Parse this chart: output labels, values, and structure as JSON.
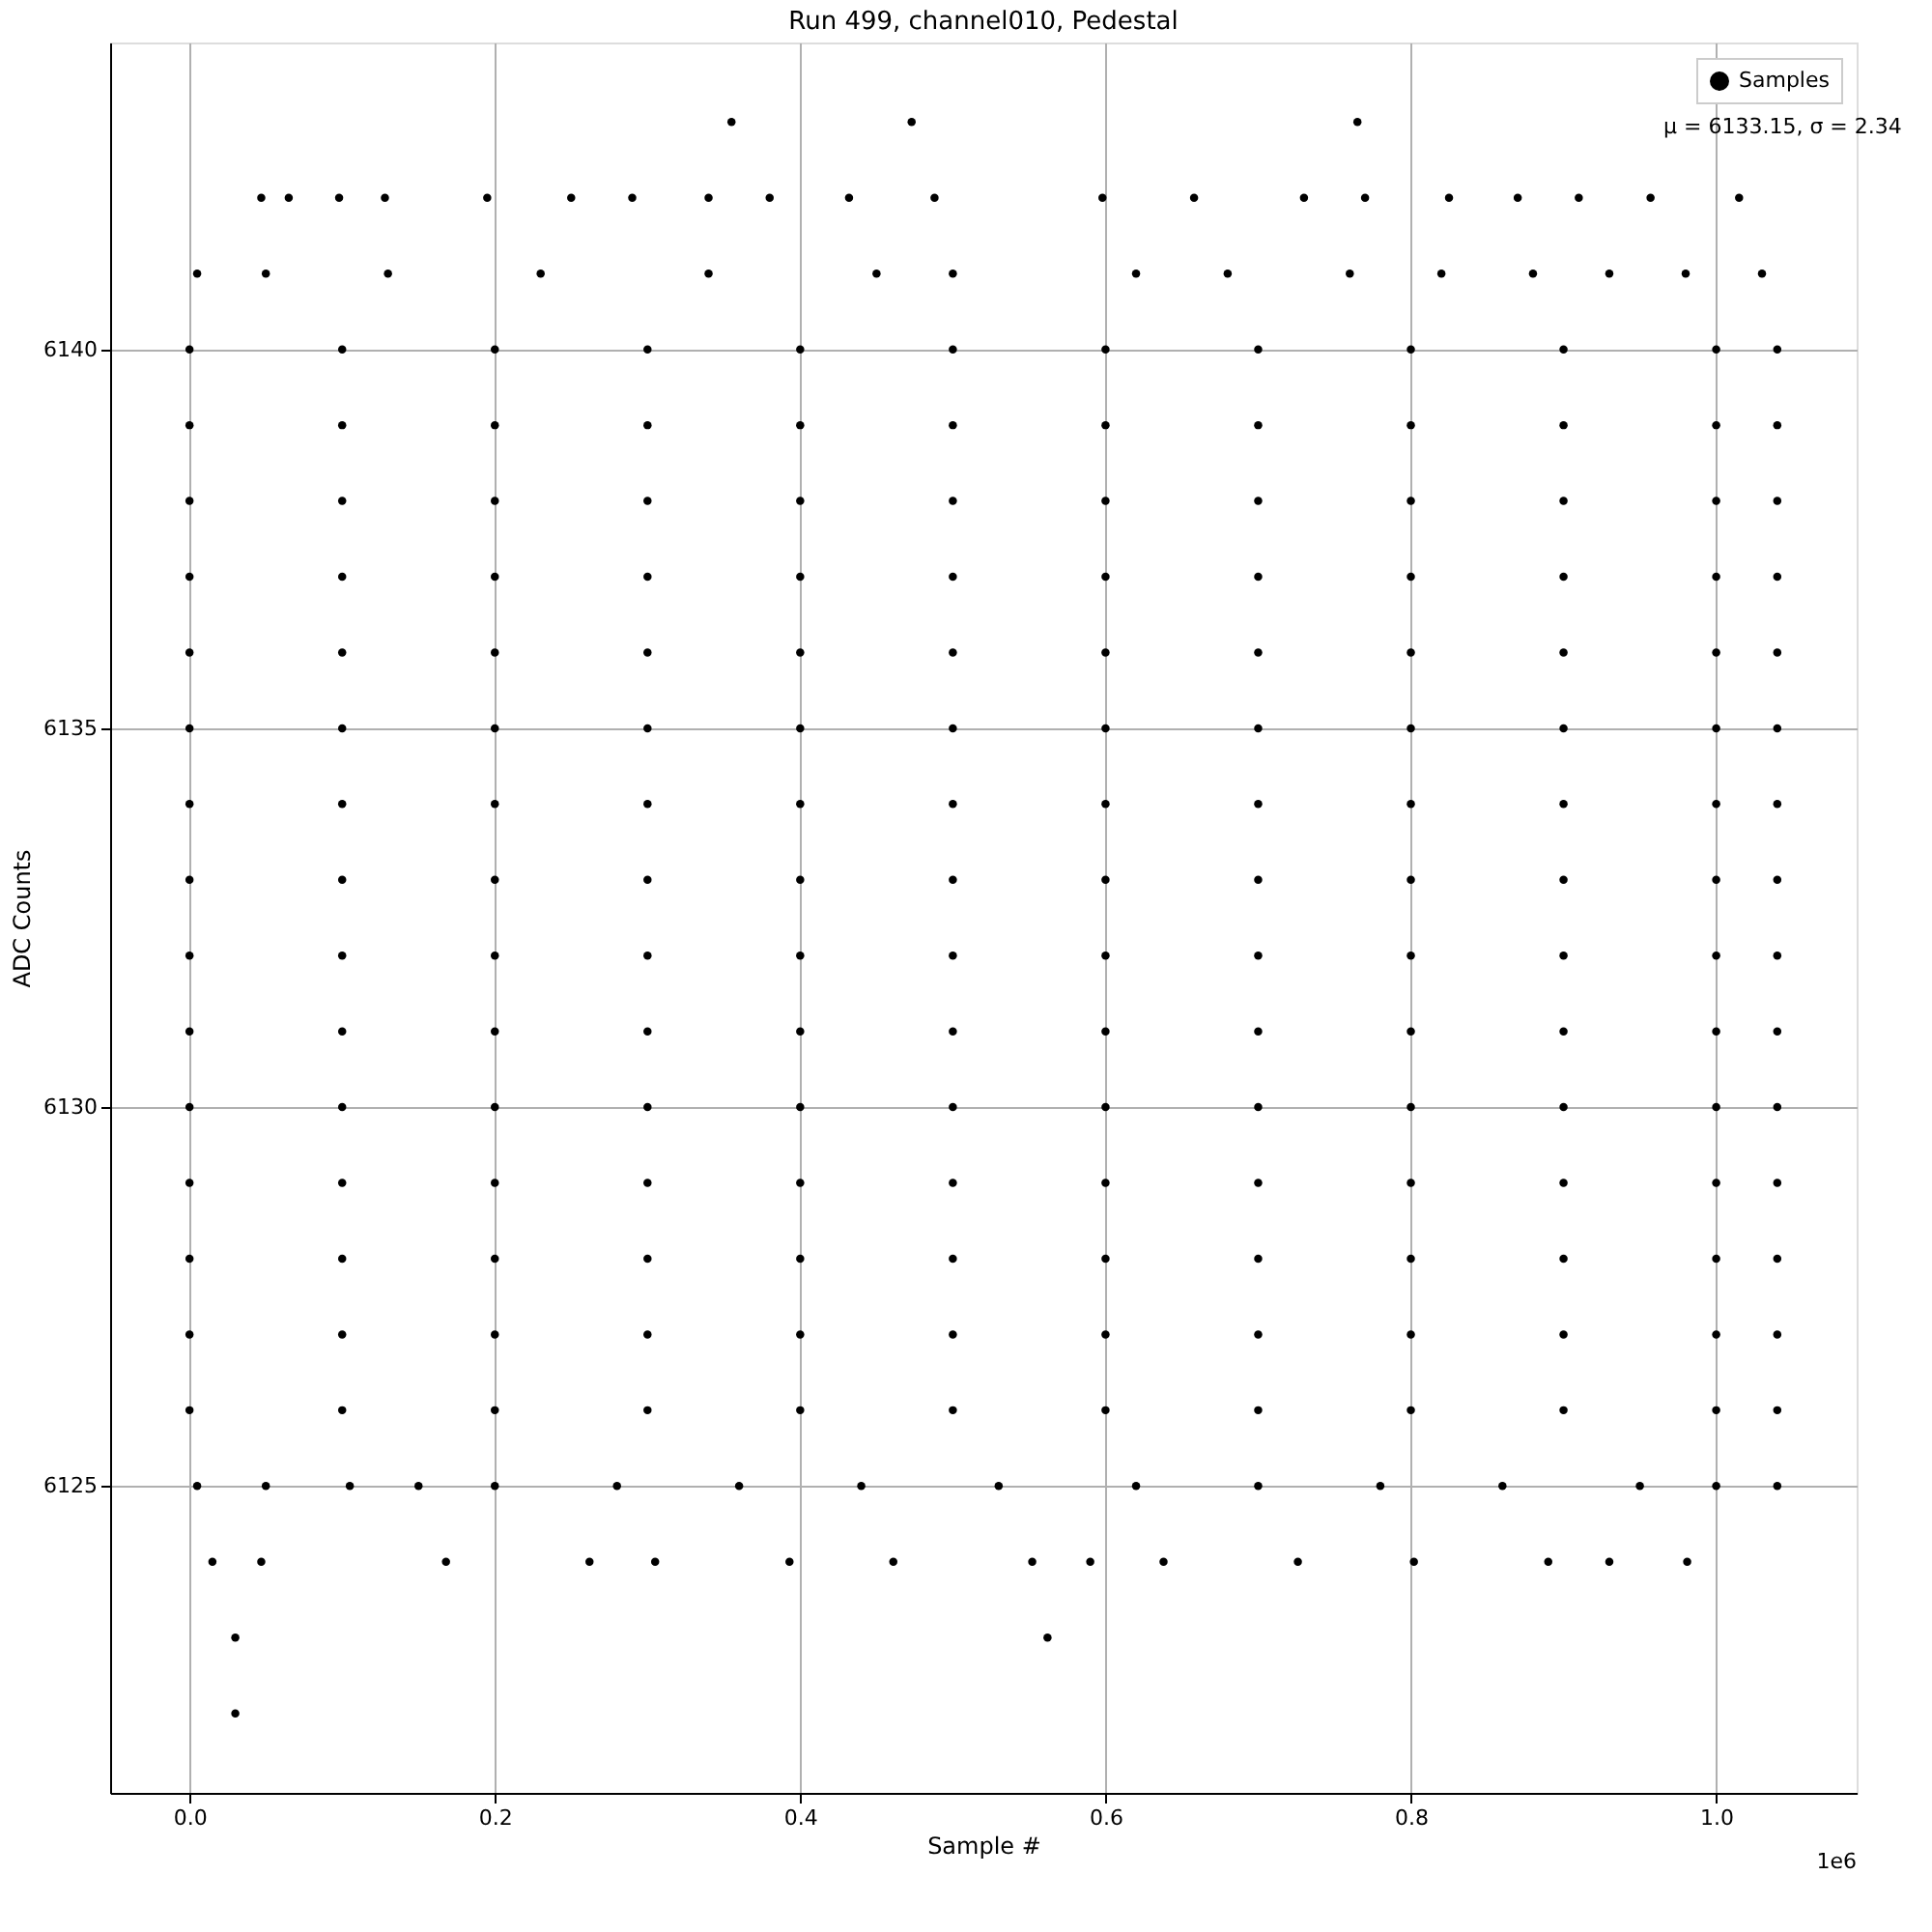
{
  "chart_data": {
    "type": "scatter",
    "title": "Run 499, channel010, Pedestal",
    "xlabel": "Sample #",
    "ylabel": "ADC Counts",
    "xlim": [
      -0.052,
      1.092
    ],
    "ylim": [
      6120.95,
      6144.05
    ],
    "xticks": [
      {
        "value": 0,
        "label": "0.0"
      },
      0.2,
      0.4,
      0.6,
      0.8,
      {
        "value": 1,
        "label": "1.0"
      }
    ],
    "yticks": [
      6125,
      6130,
      6135,
      6140
    ],
    "grid": true,
    "legend": "top right",
    "marker": "circle",
    "annotations": [
      "1e6",
      "μ = 6133.15, σ = 2.34"
    ],
    "series": [
      {
        "name": "Samples",
        "color": "#000000",
        "x": [
          0,
          0.1,
          0.2,
          0.3,
          0.4,
          0.5,
          0.6,
          0.7,
          0.8,
          0.9,
          1.0,
          1.04,
          0,
          0.1,
          0.2,
          0.3,
          0.4,
          0.5,
          0.6,
          0.7,
          0.8,
          0.9,
          1.0,
          1.04,
          0,
          0.1,
          0.2,
          0.3,
          0.4,
          0.5,
          0.6,
          0.7,
          0.8,
          0.9,
          1.0,
          1.04,
          0,
          0.1,
          0.2,
          0.3,
          0.4,
          0.5,
          0.6,
          0.7,
          0.8,
          0.9,
          1.0,
          1.04,
          0,
          0.1,
          0.2,
          0.3,
          0.4,
          0.5,
          0.6,
          0.7,
          0.8,
          0.9,
          1.0,
          1.04,
          0,
          0.1,
          0.2,
          0.3,
          0.4,
          0.5,
          0.6,
          0.7,
          0.8,
          0.9,
          1.0,
          1.04,
          0,
          0.1,
          0.2,
          0.3,
          0.4,
          0.5,
          0.6,
          0.7,
          0.8,
          0.9,
          1.0,
          1.04,
          0,
          0.1,
          0.2,
          0.3,
          0.4,
          0.5,
          0.6,
          0.7,
          0.8,
          0.9,
          1.0,
          1.04,
          0,
          0.1,
          0.2,
          0.3,
          0.4,
          0.5,
          0.6,
          0.7,
          0.8,
          0.9,
          1.0,
          1.04,
          0,
          0.1,
          0.2,
          0.3,
          0.4,
          0.5,
          0.6,
          0.7,
          0.8,
          0.9,
          1.0,
          1.04,
          0,
          0.1,
          0.2,
          0.3,
          0.4,
          0.5,
          0.6,
          0.7,
          0.8,
          0.9,
          1.0,
          1.04,
          0,
          0.1,
          0.2,
          0.3,
          0.4,
          0.5,
          0.6,
          0.7,
          0.8,
          0.9,
          1.0,
          1.04,
          0,
          0.1,
          0.2,
          0.3,
          0.4,
          0.5,
          0.6,
          0.7,
          0.8,
          0.9,
          1.0,
          1.04,
          0,
          0.1,
          0.2,
          0.3,
          0.4,
          0.5,
          0.6,
          0.7,
          0.8,
          0.9,
          1.0,
          1.04,
          0,
          0.1,
          0.2,
          0.3,
          0.4,
          0.5,
          0.6,
          0.7,
          0.8,
          0.9,
          1.0,
          1.04,
          0.015,
          0.047,
          0.168,
          0.262,
          0.305,
          0.393,
          0.461,
          0.552,
          0.59,
          0.638,
          0.726,
          0.802,
          0.89,
          0.93,
          0.981,
          0.005,
          0.05,
          0.105,
          0.15,
          0.2,
          0.28,
          0.36,
          0.44,
          0.53,
          0.62,
          0.7,
          0.78,
          0.86,
          0.95,
          1.0,
          1.04,
          0.005,
          0.05,
          0.13,
          0.23,
          0.34,
          0.45,
          0.5,
          0.62,
          0.68,
          0.76,
          0.82,
          0.88,
          0.93,
          0.98,
          1.03,
          0.047,
          0.065,
          0.098,
          0.128,
          0.195,
          0.25,
          0.29,
          0.34,
          0.38,
          0.432,
          0.488,
          0.598,
          0.658,
          0.73,
          0.77,
          0.825,
          0.87,
          0.91,
          0.957,
          1.015,
          0.355,
          0.473,
          0.765,
          0.03,
          0.562,
          0.03
        ],
        "values": [
          6126,
          6126,
          6126,
          6126,
          6126,
          6126,
          6126,
          6126,
          6126,
          6126,
          6126,
          6126,
          6127,
          6127,
          6127,
          6127,
          6127,
          6127,
          6127,
          6127,
          6127,
          6127,
          6127,
          6127,
          6128,
          6128,
          6128,
          6128,
          6128,
          6128,
          6128,
          6128,
          6128,
          6128,
          6128,
          6128,
          6129,
          6129,
          6129,
          6129,
          6129,
          6129,
          6129,
          6129,
          6129,
          6129,
          6129,
          6129,
          6130,
          6130,
          6130,
          6130,
          6130,
          6130,
          6130,
          6130,
          6130,
          6130,
          6130,
          6130,
          6131,
          6131,
          6131,
          6131,
          6131,
          6131,
          6131,
          6131,
          6131,
          6131,
          6131,
          6131,
          6132,
          6132,
          6132,
          6132,
          6132,
          6132,
          6132,
          6132,
          6132,
          6132,
          6132,
          6132,
          6133,
          6133,
          6133,
          6133,
          6133,
          6133,
          6133,
          6133,
          6133,
          6133,
          6133,
          6133,
          6134,
          6134,
          6134,
          6134,
          6134,
          6134,
          6134,
          6134,
          6134,
          6134,
          6134,
          6134,
          6135,
          6135,
          6135,
          6135,
          6135,
          6135,
          6135,
          6135,
          6135,
          6135,
          6135,
          6135,
          6136,
          6136,
          6136,
          6136,
          6136,
          6136,
          6136,
          6136,
          6136,
          6136,
          6136,
          6136,
          6137,
          6137,
          6137,
          6137,
          6137,
          6137,
          6137,
          6137,
          6137,
          6137,
          6137,
          6137,
          6138,
          6138,
          6138,
          6138,
          6138,
          6138,
          6138,
          6138,
          6138,
          6138,
          6138,
          6138,
          6139,
          6139,
          6139,
          6139,
          6139,
          6139,
          6139,
          6139,
          6139,
          6139,
          6139,
          6139,
          6140,
          6140,
          6140,
          6140,
          6140,
          6140,
          6140,
          6140,
          6140,
          6140,
          6140,
          6140,
          6124,
          6124,
          6124,
          6124,
          6124,
          6124,
          6124,
          6124,
          6124,
          6124,
          6124,
          6124,
          6124,
          6124,
          6124,
          6125,
          6125,
          6125,
          6125,
          6125,
          6125,
          6125,
          6125,
          6125,
          6125,
          6125,
          6125,
          6125,
          6125,
          6125,
          6125,
          6141,
          6141,
          6141,
          6141,
          6141,
          6141,
          6141,
          6141,
          6141,
          6141,
          6141,
          6141,
          6141,
          6141,
          6141,
          6142,
          6142,
          6142,
          6142,
          6142,
          6142,
          6142,
          6142,
          6142,
          6142,
          6142,
          6142,
          6142,
          6142,
          6142,
          6142,
          6142,
          6142,
          6142,
          6142,
          6143,
          6143,
          6143,
          6123,
          6123,
          6122
        ]
      }
    ]
  }
}
